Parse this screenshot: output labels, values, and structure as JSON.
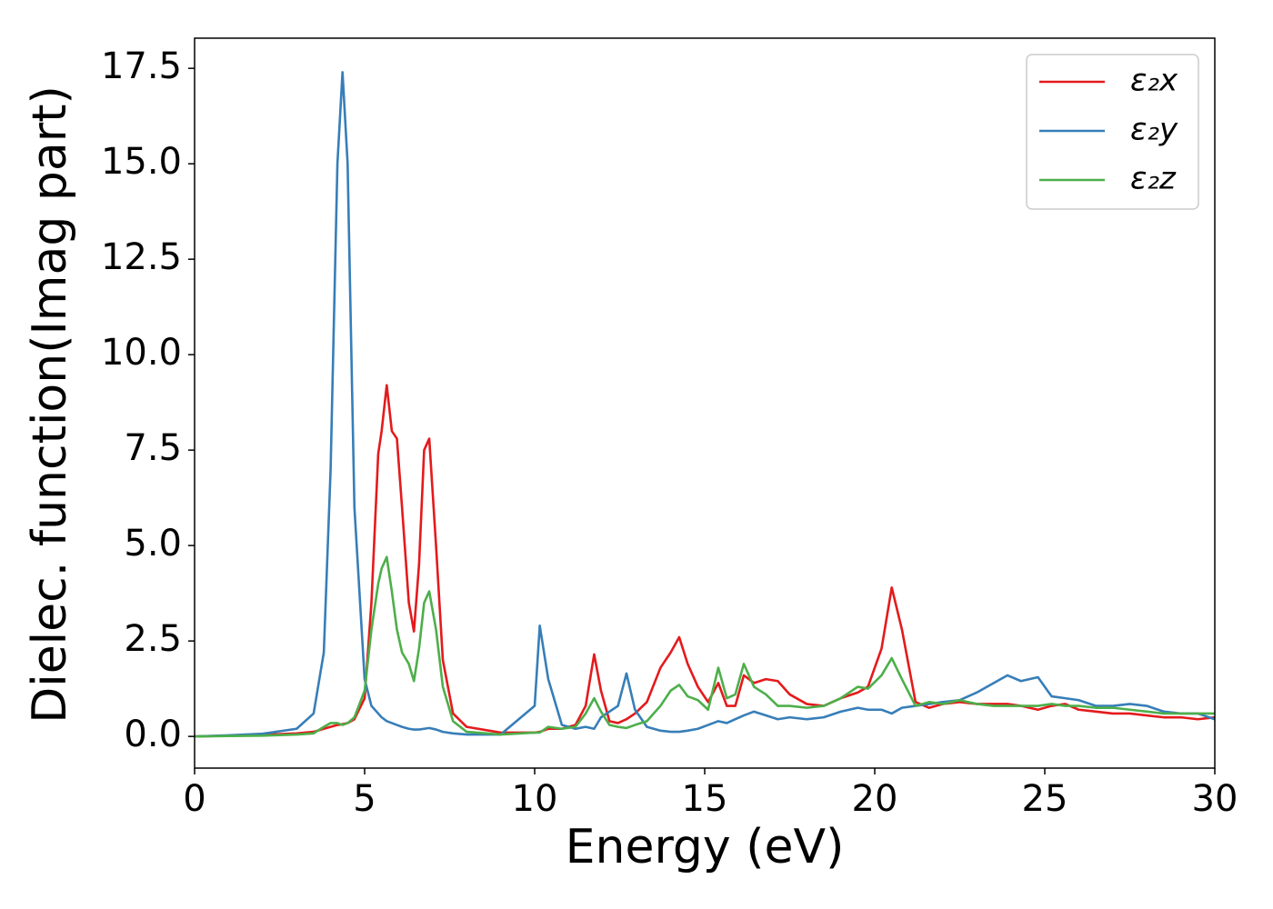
{
  "chart_data": {
    "type": "line",
    "xlabel": "Energy (eV)",
    "ylabel": "Dielec. function(Imag part)",
    "x": [
      0,
      1,
      2,
      3,
      3.5,
      3.8,
      4.0,
      4.2,
      4.35,
      4.5,
      4.7,
      5.0,
      5.2,
      5.4,
      5.5,
      5.65,
      5.8,
      5.95,
      6.1,
      6.3,
      6.45,
      6.6,
      6.75,
      6.9,
      7.1,
      7.3,
      7.6,
      8,
      9,
      10,
      10.15,
      10.4,
      10.8,
      11.2,
      11.5,
      11.75,
      11.95,
      12.2,
      12.45,
      12.7,
      12.95,
      13.3,
      13.7,
      14.0,
      14.25,
      14.5,
      14.8,
      15.1,
      15.4,
      15.65,
      15.9,
      16.15,
      16.45,
      16.8,
      17.15,
      17.5,
      18,
      18.5,
      19,
      19.5,
      19.8,
      20.2,
      20.5,
      20.8,
      21.2,
      21.6,
      22,
      22.5,
      23,
      23.5,
      23.9,
      24.3,
      24.8,
      25.2,
      25.6,
      26,
      26.5,
      27,
      27.5,
      28,
      28.5,
      29,
      29.5,
      30
    ],
    "series": [
      {
        "name": "ε₂x",
        "color": "#e41a1c",
        "values": [
          0,
          0.02,
          0.04,
          0.08,
          0.12,
          0.2,
          0.25,
          0.3,
          0.32,
          0.35,
          0.45,
          1.0,
          3.5,
          7.4,
          8.0,
          9.2,
          8.0,
          7.8,
          6.0,
          3.5,
          2.75,
          4.5,
          7.5,
          7.8,
          5.0,
          2.0,
          0.6,
          0.25,
          0.1,
          0.1,
          0.12,
          0.2,
          0.2,
          0.3,
          0.8,
          2.15,
          1.2,
          0.4,
          0.35,
          0.45,
          0.6,
          0.9,
          1.8,
          2.2,
          2.6,
          1.9,
          1.3,
          0.9,
          1.4,
          0.8,
          0.8,
          1.6,
          1.4,
          1.5,
          1.45,
          1.1,
          0.85,
          0.8,
          1.0,
          1.15,
          1.3,
          2.3,
          3.9,
          2.8,
          0.9,
          0.75,
          0.85,
          0.9,
          0.85,
          0.85,
          0.85,
          0.8,
          0.7,
          0.8,
          0.85,
          0.7,
          0.65,
          0.6,
          0.6,
          0.55,
          0.5,
          0.5,
          0.45,
          0.5
        ]
      },
      {
        "name": "ε₂y",
        "color": "#377eb8",
        "values": [
          0,
          0.03,
          0.07,
          0.2,
          0.6,
          2.2,
          7,
          15,
          17.4,
          15,
          6,
          1.5,
          0.8,
          0.6,
          0.5,
          0.4,
          0.35,
          0.3,
          0.25,
          0.2,
          0.18,
          0.18,
          0.2,
          0.22,
          0.18,
          0.12,
          0.08,
          0.05,
          0.05,
          0.8,
          2.9,
          1.5,
          0.3,
          0.2,
          0.25,
          0.2,
          0.5,
          0.65,
          0.8,
          1.65,
          0.7,
          0.25,
          0.15,
          0.12,
          0.12,
          0.15,
          0.2,
          0.3,
          0.4,
          0.35,
          0.45,
          0.55,
          0.65,
          0.55,
          0.45,
          0.5,
          0.45,
          0.5,
          0.65,
          0.75,
          0.7,
          0.7,
          0.6,
          0.75,
          0.8,
          0.85,
          0.9,
          0.95,
          1.15,
          1.4,
          1.6,
          1.45,
          1.55,
          1.05,
          1.0,
          0.95,
          0.8,
          0.8,
          0.85,
          0.8,
          0.65,
          0.6,
          0.6,
          0.45
        ]
      },
      {
        "name": "ε₂z",
        "color": "#4daf4a",
        "values": [
          0,
          0.01,
          0.02,
          0.05,
          0.08,
          0.25,
          0.35,
          0.35,
          0.3,
          0.35,
          0.5,
          1.2,
          2.8,
          4.0,
          4.4,
          4.7,
          3.8,
          2.8,
          2.2,
          1.9,
          1.45,
          2.3,
          3.5,
          3.8,
          2.8,
          1.3,
          0.4,
          0.12,
          0.05,
          0.1,
          0.1,
          0.25,
          0.2,
          0.25,
          0.6,
          1.0,
          0.65,
          0.3,
          0.25,
          0.22,
          0.3,
          0.4,
          0.8,
          1.2,
          1.35,
          1.05,
          0.95,
          0.7,
          1.8,
          1.0,
          1.1,
          1.9,
          1.3,
          1.1,
          0.8,
          0.8,
          0.75,
          0.8,
          1.0,
          1.3,
          1.25,
          1.6,
          2.05,
          1.5,
          0.8,
          0.9,
          0.85,
          0.95,
          0.85,
          0.8,
          0.8,
          0.8,
          0.8,
          0.85,
          0.8,
          0.8,
          0.75,
          0.75,
          0.7,
          0.65,
          0.6,
          0.6,
          0.6,
          0.6
        ]
      }
    ],
    "xlim": [
      0,
      30
    ],
    "xticks": [
      0,
      5,
      10,
      15,
      20,
      25,
      30
    ],
    "ylim": [
      -0.83,
      18.29
    ],
    "yticks": [
      {
        "value": 0,
        "label": "0.0"
      },
      2.5,
      {
        "value": 5,
        "label": "5.0"
      },
      7.5,
      {
        "value": 10,
        "label": "10.0"
      },
      12.5,
      {
        "value": 15,
        "label": "15.0"
      },
      17.5
    ],
    "grid": false,
    "legend": "upper right"
  }
}
